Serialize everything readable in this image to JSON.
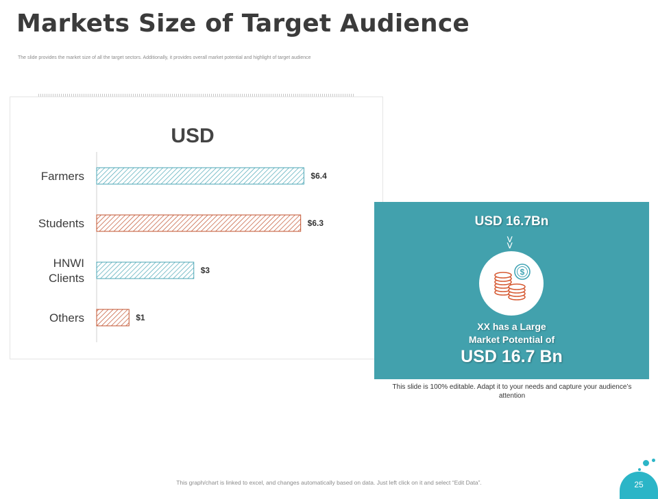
{
  "slide": {
    "title": "Markets Size of Target Audience",
    "subtitle": "The slide provides the market size of all the target sectors. Additionally, it provides overall market potential and highlight of target audience",
    "footer": "This graph/chart is linked to excel, and changes automatically based on data. Just left click on it and select “Edit Data”.",
    "page_number": "25"
  },
  "panel": {
    "headline": "USD 16.7Bn",
    "text_line1": "XX has a Large",
    "text_line2": "Market Potential of",
    "big_value": "USD 16.7 Bn",
    "icon": "coins-dollar-icon",
    "chevron_icon": "chevron-double-down-icon"
  },
  "note": "This slide is 100% editable. Adapt it to your needs and capture your audience’s attention",
  "colors": {
    "teal_panel": "#42a1ad",
    "teal_bar": "#4aa6b5",
    "orange_bar": "#c0502c",
    "badge": "#2bb5c7"
  },
  "chart_data": {
    "type": "bar",
    "orientation": "horizontal",
    "title": "USD",
    "categories": [
      "Farmers",
      "Students",
      "HNWI\nClients",
      "Others"
    ],
    "values": [
      6.4,
      6.3,
      3,
      1
    ],
    "data_labels": [
      "$6.4",
      "$6.3",
      "$3",
      "$1"
    ],
    "bar_colors": [
      "#4aa6b5",
      "#c0502c",
      "#4aa6b5",
      "#c0502c"
    ],
    "pattern": "diagonal-hatch",
    "xlim": [
      0,
      8
    ],
    "grid": false,
    "legend": "none"
  }
}
